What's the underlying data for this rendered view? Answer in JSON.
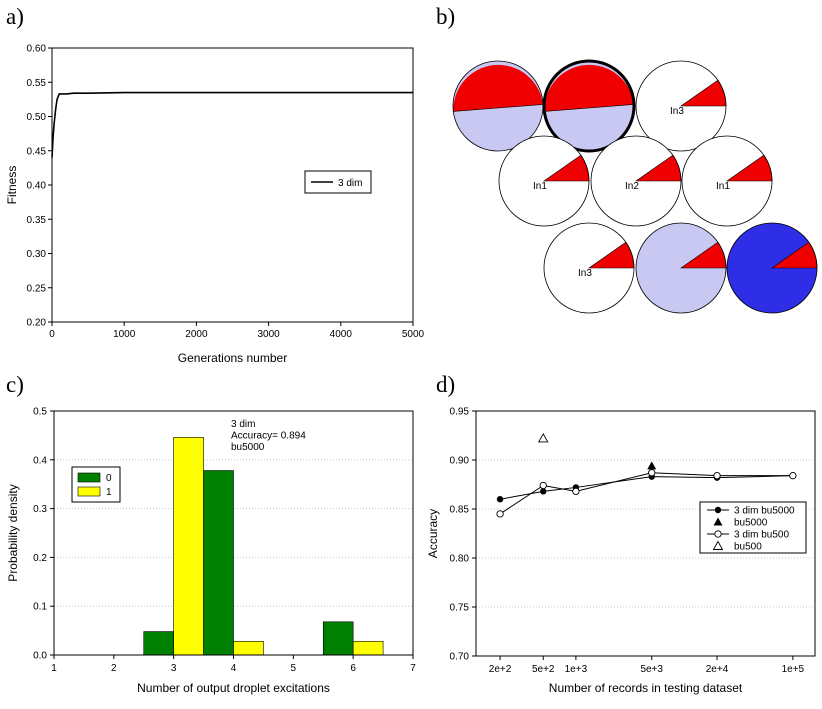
{
  "panels": {
    "a": "a)",
    "b": "b)",
    "c": "c)",
    "d": "d)"
  },
  "chart_data": [
    {
      "panel": "a",
      "type": "line",
      "xlabel": "Generations number",
      "ylabel": "Fitness",
      "xlim": [
        0,
        5000
      ],
      "ylim": [
        0.2,
        0.6
      ],
      "xticks": [
        "0",
        "1000",
        "2000",
        "3000",
        "4000",
        "5000"
      ],
      "yticks": [
        "0.20",
        "0.25",
        "0.30",
        "0.35",
        "0.40",
        "0.45",
        "0.50",
        "0.55",
        "0.60"
      ],
      "grid": false,
      "legend_position": "right-middle",
      "series": [
        {
          "name": "3 dim",
          "color": "#000000",
          "x": [
            0,
            15,
            30,
            50,
            70,
            100,
            200,
            300,
            500,
            1000,
            1500,
            2000,
            3000,
            4000,
            5000
          ],
          "y": [
            0.44,
            0.47,
            0.49,
            0.51,
            0.525,
            0.533,
            0.533,
            0.534,
            0.534,
            0.535,
            0.535,
            0.535,
            0.535,
            0.535,
            0.535
          ]
        }
      ]
    },
    {
      "panel": "b",
      "type": "diagram",
      "fill_colors": {
        "red": "#f00000",
        "light": "#c8c8f2",
        "white": "#ffffff",
        "blue": "#2e2ee6"
      },
      "circles": [
        {
          "label": "",
          "style": "half",
          "bold": false
        },
        {
          "label": "",
          "style": "half",
          "bold": true
        },
        {
          "label": "In3",
          "style": "wedge",
          "base": "white",
          "bold": false
        },
        {
          "label": "In1",
          "style": "wedge",
          "base": "white",
          "bold": false
        },
        {
          "label": "In2",
          "style": "wedge",
          "base": "white",
          "bold": false
        },
        {
          "label": "In1",
          "style": "wedge",
          "base": "white",
          "bold": false
        },
        {
          "label": "In3",
          "style": "wedge",
          "base": "white",
          "bold": false
        },
        {
          "label": "",
          "style": "wedge",
          "base": "light",
          "bold": false
        },
        {
          "label": "",
          "style": "wedge",
          "base": "blue",
          "bold": false
        }
      ]
    },
    {
      "panel": "c",
      "type": "bar",
      "xlabel": "Number of output droplet excitations",
      "ylabel": "Probability density",
      "xlim": [
        1,
        7
      ],
      "ylim": [
        0,
        0.5
      ],
      "xticks": [
        "1",
        "2",
        "3",
        "4",
        "5",
        "6",
        "7"
      ],
      "yticks": [
        "0.0",
        "0.1",
        "0.2",
        "0.3",
        "0.4",
        "0.5"
      ],
      "grid": true,
      "annotation": [
        "3 dim",
        "Accuracy= 0.894",
        "bu5000"
      ],
      "legend_position": "top-left",
      "categories": [
        3,
        4,
        6
      ],
      "series": [
        {
          "name": "0",
          "color": "#008000",
          "values": [
            0.048,
            0.378,
            0.068
          ]
        },
        {
          "name": "1",
          "color": "#ffff00",
          "values": [
            0.446,
            0.028,
            0.028
          ]
        }
      ]
    },
    {
      "panel": "d",
      "type": "line",
      "xlabel": "Number of records in testing dataset",
      "ylabel": "Accuracy",
      "xscale": "log",
      "ylim": [
        0.7,
        0.95
      ],
      "xticks": [
        "2e+2",
        "5e+2",
        "1e+3",
        "5e+3",
        "2e+4",
        "1e+5"
      ],
      "tick_values": [
        200,
        500,
        1000,
        5000,
        20000,
        100000
      ],
      "yticks": [
        "0.70",
        "0.75",
        "0.80",
        "0.85",
        "0.90",
        "0.95"
      ],
      "grid": true,
      "legend_position": "right",
      "series": [
        {
          "name": "3 dim bu5000",
          "marker": "filled-circle",
          "line": true,
          "x": [
            200,
            500,
            1000,
            5000,
            20000,
            100000
          ],
          "y": [
            0.86,
            0.868,
            0.872,
            0.883,
            0.882,
            0.884
          ]
        },
        {
          "name": "bu5000",
          "marker": "filled-triangle",
          "line": false,
          "x": [
            5000
          ],
          "y": [
            0.894
          ]
        },
        {
          "name": "3 dim bu500",
          "marker": "open-circle",
          "line": true,
          "x": [
            200,
            500,
            1000,
            5000,
            20000,
            100000
          ],
          "y": [
            0.845,
            0.874,
            0.868,
            0.887,
            0.884,
            0.884
          ]
        },
        {
          "name": "bu500",
          "marker": "open-triangle",
          "line": false,
          "x": [
            500
          ],
          "y": [
            0.922
          ]
        }
      ]
    }
  ]
}
